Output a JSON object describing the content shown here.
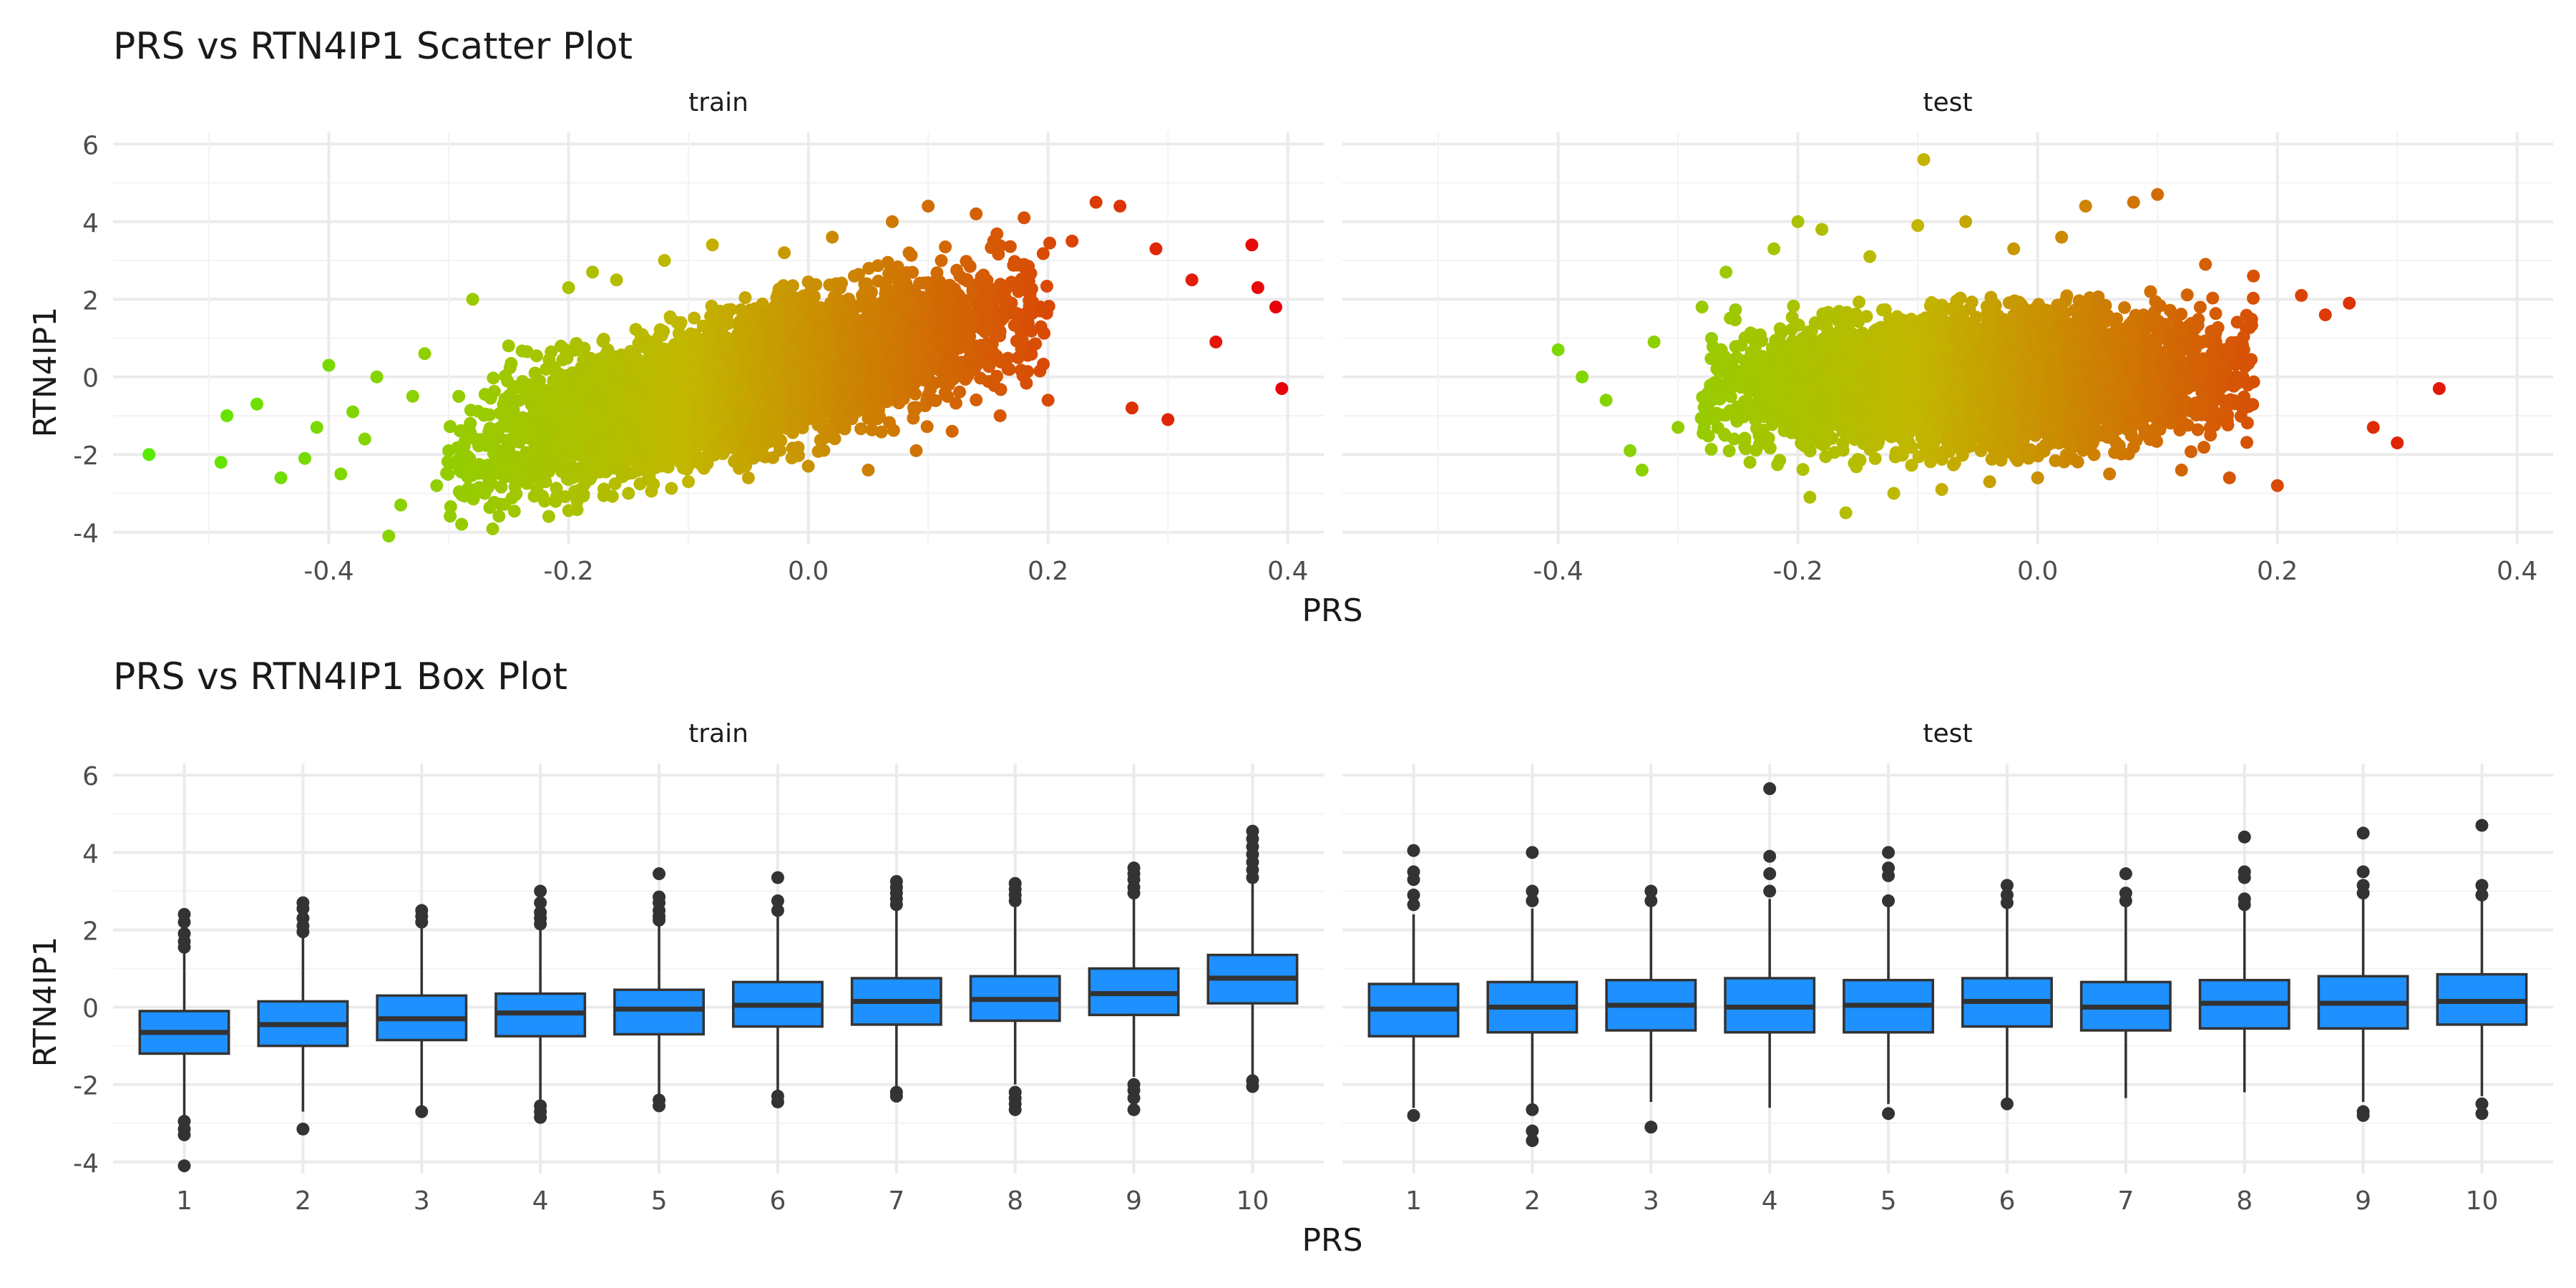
{
  "chart_data": [
    {
      "type": "scatter",
      "title": "PRS vs RTN4IP1 Scatter Plot",
      "xlabel": "PRS",
      "ylabel": "RTN4IP1",
      "facets": [
        "train",
        "test"
      ],
      "xlim": [
        -0.58,
        0.43
      ],
      "ylim": [
        -4.3,
        6.3
      ],
      "xticks": [
        -0.4,
        -0.2,
        0.0,
        0.2,
        0.4
      ],
      "xtick_labels": [
        "-0.4",
        "-0.2",
        "0.0",
        "0.2",
        "0.4"
      ],
      "yticks": [
        -4,
        -2,
        0,
        2,
        4,
        6
      ],
      "ytick_labels": [
        "-4",
        "-2",
        "0",
        "2",
        "4",
        "6"
      ],
      "grid": true,
      "legend": "none",
      "color_scale": {
        "low": "#4df000",
        "mid": "#c2b600",
        "high": "#e8000a"
      },
      "bulk": {
        "train": {
          "x_center": -0.05,
          "x_half_width": 0.24,
          "y_center": -0.1,
          "slope": 7.5,
          "y_half_height": 2.0
        },
        "test": {
          "x_center": -0.05,
          "x_half_width": 0.22,
          "y_center": -0.1,
          "slope": 0.8,
          "y_half_height": 1.9
        }
      },
      "series": [
        {
          "facet": "train",
          "x": [
            -0.55,
            -0.49,
            -0.485,
            -0.46,
            -0.44,
            -0.42,
            -0.41,
            -0.4,
            -0.39,
            -0.38,
            -0.37,
            -0.36,
            -0.35,
            -0.34,
            -0.33,
            -0.32,
            -0.31,
            -0.3,
            -0.28,
            -0.27,
            -0.25,
            -0.22,
            -0.2,
            -0.19,
            -0.18,
            -0.16,
            -0.15,
            -0.12,
            -0.1,
            -0.08,
            -0.05,
            -0.02,
            0.0,
            0.02,
            0.05,
            0.07,
            0.09,
            0.1,
            0.12,
            0.14,
            0.16,
            0.18,
            0.2,
            0.22,
            0.24,
            0.26,
            0.27,
            0.29,
            0.3,
            0.32,
            0.34,
            0.37,
            0.375,
            0.39,
            0.395
          ],
          "y": [
            -2.0,
            -2.2,
            -1.0,
            -0.7,
            -2.6,
            -2.1,
            -1.3,
            0.3,
            -2.5,
            -0.9,
            -1.6,
            0.0,
            -4.1,
            -3.3,
            -0.5,
            0.6,
            -2.8,
            -1.9,
            2.0,
            -3.0,
            0.8,
            -3.2,
            2.3,
            -2.9,
            2.7,
            2.5,
            -3.0,
            3.0,
            -2.7,
            3.4,
            -2.6,
            3.2,
            -2.3,
            3.6,
            -2.4,
            4.0,
            -1.9,
            4.4,
            -1.4,
            4.2,
            -1.0,
            4.1,
            -0.6,
            3.5,
            4.5,
            4.4,
            -0.8,
            3.3,
            -1.1,
            2.5,
            0.9,
            3.4,
            2.3,
            1.8,
            -0.3
          ]
        },
        {
          "facet": "test",
          "x": [
            -0.4,
            -0.38,
            -0.36,
            -0.34,
            -0.33,
            -0.32,
            -0.3,
            -0.28,
            -0.26,
            -0.24,
            -0.22,
            -0.2,
            -0.19,
            -0.18,
            -0.16,
            -0.14,
            -0.12,
            -0.1,
            -0.095,
            -0.08,
            -0.06,
            -0.04,
            -0.02,
            0.0,
            0.02,
            0.04,
            0.06,
            0.08,
            0.1,
            0.12,
            0.14,
            0.16,
            0.18,
            0.2,
            0.22,
            0.24,
            0.26,
            0.28,
            0.3,
            0.335
          ],
          "y": [
            0.7,
            0.0,
            -0.6,
            -1.9,
            -2.4,
            0.9,
            -1.3,
            1.8,
            2.7,
            -2.2,
            3.3,
            4.0,
            -3.1,
            3.8,
            -3.5,
            3.1,
            -3.0,
            3.9,
            5.6,
            -2.9,
            4.0,
            -2.7,
            3.3,
            -2.6,
            3.6,
            4.4,
            -2.5,
            4.5,
            4.7,
            -2.4,
            2.9,
            -2.6,
            2.6,
            -2.8,
            2.1,
            1.6,
            1.9,
            -1.3,
            -1.7,
            -0.3
          ]
        }
      ]
    },
    {
      "type": "box",
      "title": "PRS vs RTN4IP1 Box Plot",
      "xlabel": "PRS",
      "ylabel": "RTN4IP1",
      "facets": [
        "train",
        "test"
      ],
      "categories": [
        "1",
        "2",
        "3",
        "4",
        "5",
        "6",
        "7",
        "8",
        "9",
        "10"
      ],
      "ylim": [
        -4.3,
        6.3
      ],
      "yticks": [
        -4,
        -2,
        0,
        2,
        4,
        6
      ],
      "ytick_labels": [
        "-4",
        "-2",
        "0",
        "2",
        "4",
        "6"
      ],
      "grid": true,
      "fill": "#1e90ff",
      "series": [
        {
          "facet": "train",
          "boxes": [
            {
              "q1": -1.2,
              "median": -0.65,
              "q3": -0.1,
              "low": -2.8,
              "high": 1.5,
              "outliers": [
                2.4,
                2.2,
                1.9,
                1.7,
                1.55,
                -2.95,
                -3.15,
                -3.3,
                -4.1
              ]
            },
            {
              "q1": -1.0,
              "median": -0.45,
              "q3": 0.15,
              "low": -2.7,
              "high": 1.85,
              "outliers": [
                2.7,
                2.55,
                2.3,
                2.1,
                1.95,
                -3.15
              ]
            },
            {
              "q1": -0.85,
              "median": -0.3,
              "q3": 0.3,
              "low": -2.6,
              "high": 2.05,
              "outliers": [
                2.5,
                2.35,
                2.2,
                -2.7
              ]
            },
            {
              "q1": -0.75,
              "median": -0.15,
              "q3": 0.35,
              "low": -2.4,
              "high": 2.0,
              "outliers": [
                3.0,
                2.7,
                2.45,
                2.3,
                2.15,
                -2.55,
                -2.7,
                -2.85
              ]
            },
            {
              "q1": -0.7,
              "median": -0.05,
              "q3": 0.45,
              "low": -2.35,
              "high": 2.15,
              "outliers": [
                3.45,
                2.85,
                2.7,
                2.5,
                2.35,
                2.25,
                -2.4,
                -2.55
              ]
            },
            {
              "q1": -0.5,
              "median": 0.05,
              "q3": 0.65,
              "low": -2.2,
              "high": 2.4,
              "outliers": [
                3.35,
                2.75,
                2.5,
                -2.3,
                -2.45
              ]
            },
            {
              "q1": -0.45,
              "median": 0.15,
              "q3": 0.75,
              "low": -2.1,
              "high": 2.5,
              "outliers": [
                3.25,
                3.1,
                2.95,
                2.8,
                2.65,
                -2.2,
                -2.3
              ]
            },
            {
              "q1": -0.35,
              "median": 0.2,
              "q3": 0.8,
              "low": -2.0,
              "high": 2.6,
              "outliers": [
                3.2,
                3.05,
                2.9,
                2.75,
                -2.2,
                -2.35,
                -2.5,
                -2.65
              ]
            },
            {
              "q1": -0.2,
              "median": 0.35,
              "q3": 1.0,
              "low": -1.8,
              "high": 2.8,
              "outliers": [
                3.6,
                3.45,
                3.3,
                3.1,
                2.95,
                -2.0,
                -2.15,
                -2.35,
                -2.65
              ]
            },
            {
              "q1": 0.1,
              "median": 0.75,
              "q3": 1.35,
              "low": -1.75,
              "high": 3.2,
              "outliers": [
                4.55,
                4.35,
                4.15,
                3.95,
                3.75,
                3.55,
                3.35,
                -1.9,
                -2.05
              ]
            }
          ]
        },
        {
          "facet": "test",
          "boxes": [
            {
              "q1": -0.75,
              "median": -0.05,
              "q3": 0.6,
              "low": -2.6,
              "high": 2.4,
              "outliers": [
                4.05,
                3.5,
                3.3,
                2.9,
                2.65,
                -2.8
              ]
            },
            {
              "q1": -0.65,
              "median": 0.0,
              "q3": 0.65,
              "low": -2.5,
              "high": 2.55,
              "outliers": [
                4.0,
                3.0,
                2.75,
                -2.65,
                -3.2,
                -3.45
              ]
            },
            {
              "q1": -0.6,
              "median": 0.05,
              "q3": 0.7,
              "low": -2.45,
              "high": 2.6,
              "outliers": [
                3.0,
                2.75,
                -3.1
              ]
            },
            {
              "q1": -0.65,
              "median": 0.0,
              "q3": 0.75,
              "low": -2.6,
              "high": 2.8,
              "outliers": [
                5.65,
                3.9,
                3.45,
                3.0
              ]
            },
            {
              "q1": -0.65,
              "median": 0.05,
              "q3": 0.7,
              "low": -2.5,
              "high": 2.6,
              "outliers": [
                4.0,
                3.6,
                3.4,
                2.75,
                -2.75
              ]
            },
            {
              "q1": -0.5,
              "median": 0.15,
              "q3": 0.75,
              "low": -2.4,
              "high": 2.6,
              "outliers": [
                3.15,
                2.9,
                2.7,
                -2.5
              ]
            },
            {
              "q1": -0.6,
              "median": 0.0,
              "q3": 0.65,
              "low": -2.35,
              "high": 2.6,
              "outliers": [
                3.45,
                2.95,
                2.75
              ]
            },
            {
              "q1": -0.55,
              "median": 0.1,
              "q3": 0.7,
              "low": -2.2,
              "high": 2.65,
              "outliers": [
                4.4,
                3.5,
                3.35,
                2.8,
                2.65
              ]
            },
            {
              "q1": -0.55,
              "median": 0.1,
              "q3": 0.8,
              "low": -2.45,
              "high": 2.85,
              "outliers": [
                4.5,
                3.5,
                3.15,
                2.95,
                -2.7,
                -2.8
              ]
            },
            {
              "q1": -0.45,
              "median": 0.15,
              "q3": 0.85,
              "low": -2.3,
              "high": 2.85,
              "outliers": [
                4.7,
                3.15,
                2.9,
                -2.5,
                -2.75
              ]
            }
          ]
        }
      ]
    }
  ]
}
